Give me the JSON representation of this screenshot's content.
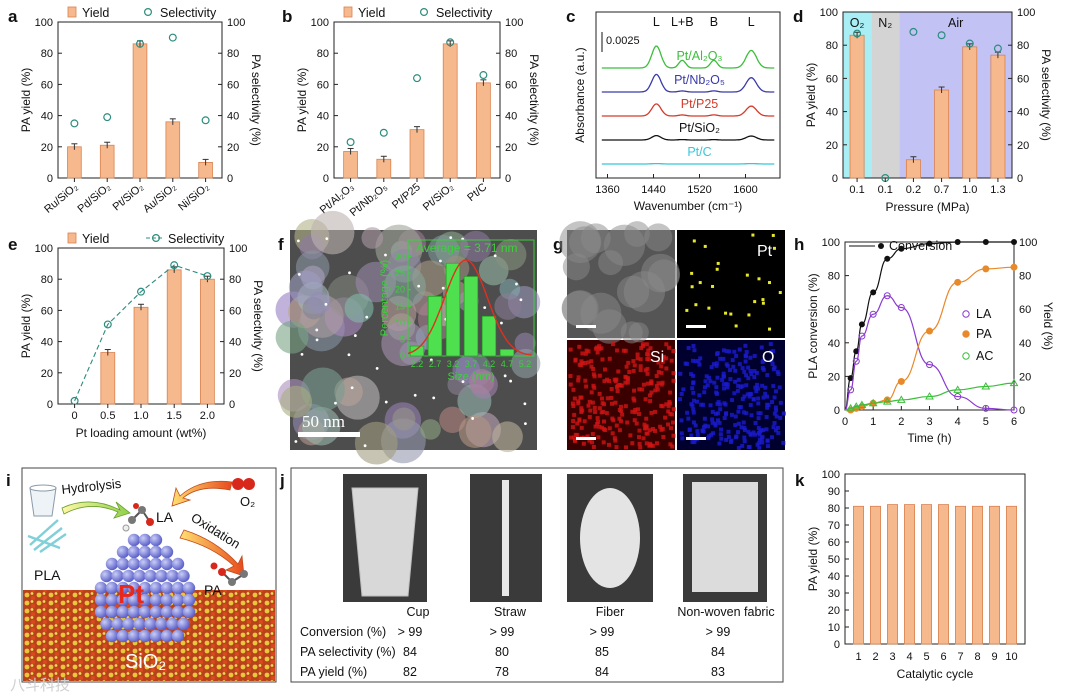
{
  "panel_labels": {
    "a": "a",
    "b": "b",
    "c": "c",
    "d": "d",
    "e": "e",
    "f": "f",
    "g": "g",
    "h": "h",
    "i": "i",
    "j": "j",
    "k": "k"
  },
  "chart_data": [
    {
      "id": "a",
      "type": "bar",
      "legend": {
        "yield": "Yield",
        "selectivity": "Selectivity"
      },
      "ylabel": "PA yield (%)",
      "y2label": "PA selectivity (%)",
      "ylim": [
        0,
        100
      ],
      "y2lim": [
        0,
        100
      ],
      "yticks": [
        0,
        20,
        40,
        60,
        80,
        100
      ],
      "categories": [
        "Ru/SiO₂",
        "Pd/SiO₂",
        "Pt/SiO₂",
        "Au/SiO₂",
        "Ni/SiO₂"
      ],
      "series": [
        {
          "name": "Yield",
          "values": [
            20,
            21,
            86,
            36,
            10
          ]
        },
        {
          "name": "Selectivity",
          "values": [
            35,
            39,
            86,
            90,
            37
          ]
        }
      ]
    },
    {
      "id": "b",
      "type": "bar",
      "legend": {
        "yield": "Yield",
        "selectivity": "Selectivity"
      },
      "ylabel": "PA yield (%)",
      "y2label": "PA selectivity (%)",
      "ylim": [
        0,
        100
      ],
      "y2lim": [
        0,
        100
      ],
      "yticks": [
        0,
        20,
        40,
        60,
        80,
        100
      ],
      "categories": [
        "Pt/Al₂O₃",
        "Pt/Nb₂O₅",
        "Pt/P25",
        "Pt/SiO₂",
        "Pt/C"
      ],
      "series": [
        {
          "name": "Yield",
          "values": [
            17,
            12,
            31,
            86,
            61
          ]
        },
        {
          "name": "Selectivity",
          "values": [
            23,
            29,
            64,
            87,
            66
          ]
        }
      ]
    },
    {
      "id": "c",
      "type": "line",
      "xlabel": "Wavenumber (cm⁻¹)",
      "ylabel": "Absorbance (a.u.)",
      "xlim": [
        1340,
        1660
      ],
      "xticks": [
        1360,
        1440,
        1520,
        1600
      ],
      "scale_bar": "0.0025",
      "peak_labels": [
        {
          "text": "L",
          "x": 1445
        },
        {
          "text": "L+B",
          "x": 1490
        },
        {
          "text": "B",
          "x": 1545
        },
        {
          "text": "L",
          "x": 1610
        }
      ],
      "series": [
        {
          "name": "Pt/Al₂O₃",
          "color": "#3bbf3b",
          "offset": 4,
          "amps": [
            1.0,
            0.35,
            0.35,
            0.8
          ]
        },
        {
          "name": "Pt/Nb₂O₅",
          "color": "#3a3aa8",
          "offset": 3,
          "amps": [
            0.8,
            0.05,
            0.05,
            0.65
          ]
        },
        {
          "name": "Pt/P25",
          "color": "#d43a2a",
          "offset": 2,
          "amps": [
            0.55,
            0.05,
            0.05,
            0.45
          ]
        },
        {
          "name": "Pt/SiO₂",
          "color": "#111111",
          "offset": 1,
          "amps": [
            0.2,
            0.02,
            0.02,
            0.18
          ]
        },
        {
          "name": "Pt/C",
          "color": "#35c8d8",
          "offset": 0,
          "amps": [
            0.02,
            0,
            0,
            0.02
          ]
        }
      ]
    },
    {
      "id": "d",
      "type": "bar",
      "xlabel": "Pressure (MPa)",
      "ylabel": "PA yield (%)",
      "y2label": "PA selectivity (%)",
      "ylim": [
        0,
        100
      ],
      "y2lim": [
        0,
        100
      ],
      "yticks": [
        0,
        20,
        40,
        60,
        80,
        100
      ],
      "regions": [
        {
          "label": "O₂",
          "color": "#a8eef4"
        },
        {
          "label": "N₂",
          "color": "#d4d4d4"
        },
        {
          "label": "Air",
          "color": "#c2c2f5"
        }
      ],
      "categories": [
        "0.1",
        "0.1",
        "0.2",
        "0.7",
        "1.0",
        "1.3"
      ],
      "series": [
        {
          "name": "Yield",
          "values": [
            86,
            0,
            11,
            53,
            79,
            74
          ]
        },
        {
          "name": "Selectivity",
          "values": [
            87,
            0,
            88,
            86,
            81,
            78
          ]
        }
      ]
    },
    {
      "id": "e",
      "type": "bar",
      "legend": {
        "yield": "Yield",
        "selectivity": "Selectivity"
      },
      "xlabel": "Pt loading amount (wt%)",
      "ylabel": "PA yield (%)",
      "y2label": "PA selectivity (%)",
      "ylim": [
        0,
        100
      ],
      "y2lim": [
        0,
        100
      ],
      "yticks": [
        0,
        20,
        40,
        60,
        80,
        100
      ],
      "categories": [
        "0",
        "0.5",
        "1.0",
        "1.5",
        "2.0"
      ],
      "series": [
        {
          "name": "Yield",
          "values": [
            0,
            33,
            62,
            86,
            80
          ]
        },
        {
          "name": "Selectivity",
          "values": [
            2,
            51,
            72,
            89,
            82
          ]
        }
      ]
    },
    {
      "id": "f",
      "type": "bar",
      "title": "Average = 3.71 nm",
      "scale_bar": "50 nm",
      "xlabel": "Size (nm)",
      "ylabel": "Percentage (%)",
      "ylim": [
        0,
        35
      ],
      "yticks": [
        0,
        5,
        10,
        15,
        20,
        25,
        30
      ],
      "categories": [
        "2.2",
        "2.7",
        "3.2",
        "3.7",
        "4.2",
        "4.7",
        "5.2"
      ],
      "values": [
        3,
        18,
        28,
        24,
        12,
        2,
        0
      ]
    },
    {
      "id": "g",
      "type": "table",
      "channels": [
        "",
        "Pt",
        "Si",
        "O"
      ]
    },
    {
      "id": "h",
      "type": "line",
      "xlabel": "Time (h)",
      "ylabel": "PLA conversion (%)",
      "y2label": "Yield (%)",
      "xlim": [
        0,
        6
      ],
      "ylim": [
        0,
        100
      ],
      "y2lim": [
        0,
        100
      ],
      "xticks": [
        0,
        1,
        2,
        3,
        4,
        5,
        6
      ],
      "yticks": [
        0,
        20,
        40,
        60,
        80,
        100
      ],
      "series": [
        {
          "name": "Conversion",
          "color": "#111111",
          "x": [
            0,
            0.2,
            0.4,
            0.6,
            1,
            1.5,
            2,
            3,
            4,
            5,
            6
          ],
          "y": [
            0,
            19,
            35,
            51,
            70,
            90,
            96,
            99,
            100,
            100,
            100
          ]
        },
        {
          "name": "LA",
          "color": "#8a3bd0",
          "x": [
            0,
            0.2,
            0.4,
            0.6,
            1,
            1.5,
            2,
            3,
            4,
            5,
            6
          ],
          "y": [
            0,
            12,
            29,
            44,
            57,
            68,
            61,
            27,
            8,
            1,
            0
          ]
        },
        {
          "name": "PA",
          "color": "#e8892a",
          "x": [
            0,
            0.2,
            0.4,
            0.6,
            1,
            1.5,
            2,
            3,
            4,
            5,
            6
          ],
          "y": [
            0,
            0,
            1,
            2,
            4,
            6,
            17,
            47,
            76,
            84,
            85
          ]
        },
        {
          "name": "AC",
          "color": "#3bbf3b",
          "x": [
            0,
            0.2,
            0.4,
            0.6,
            1,
            1.5,
            2,
            3,
            4,
            5,
            6
          ],
          "y": [
            0,
            1,
            2,
            3,
            4,
            5,
            6,
            8,
            12,
            14,
            16
          ]
        }
      ]
    },
    {
      "id": "j",
      "type": "table",
      "columns": [
        "Cup",
        "Straw",
        "Fiber",
        "Non-woven fabric"
      ],
      "rows": [
        {
          "label": "Conversion (%)",
          "values": [
            "> 99",
            "> 99",
            "> 99",
            "> 99"
          ]
        },
        {
          "label": "PA selectivity (%)",
          "values": [
            "84",
            "80",
            "85",
            "84"
          ]
        },
        {
          "label": "PA yield (%)",
          "values": [
            "82",
            "78",
            "84",
            "83"
          ]
        }
      ]
    },
    {
      "id": "k",
      "type": "bar",
      "xlabel": "Catalytic cycle",
      "ylabel": "PA yield (%)",
      "ylim": [
        0,
        100
      ],
      "yticks": [
        0,
        10,
        20,
        30,
        40,
        50,
        60,
        70,
        80,
        90,
        100
      ],
      "categories": [
        "1",
        "2",
        "3",
        "4",
        "5",
        "6",
        "7",
        "8",
        "9",
        "10"
      ],
      "values": [
        81,
        81,
        82,
        82,
        82,
        82,
        81,
        81,
        81,
        81
      ]
    }
  ],
  "scheme_i": {
    "hydrolysis": "Hydrolysis",
    "oxidation": "Oxidation",
    "la": "LA",
    "o2": "O₂",
    "pla": "PLA",
    "pa": "PA",
    "pt": "Pt",
    "support": "SiO₂"
  },
  "watermark": "八斗科技"
}
